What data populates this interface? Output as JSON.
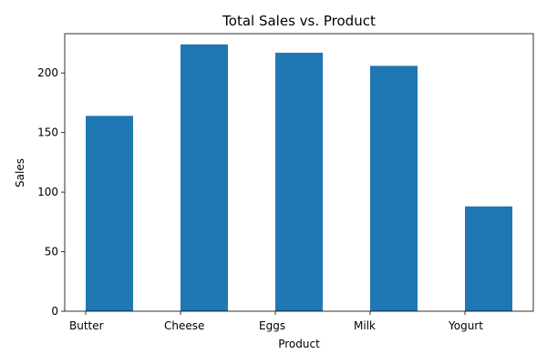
{
  "chart_data": {
    "type": "bar",
    "title": "Total Sales vs. Product",
    "xlabel": "Product",
    "ylabel": "Sales",
    "categories": [
      "Butter",
      "Cheese",
      "Eggs",
      "Milk",
      "Yogurt"
    ],
    "values": [
      164,
      224,
      217,
      206,
      88
    ],
    "ylim": [
      0,
      233
    ],
    "yticks": [
      0,
      50,
      100,
      150,
      200
    ],
    "grid": false,
    "bar_color": "#1f77b4"
  }
}
